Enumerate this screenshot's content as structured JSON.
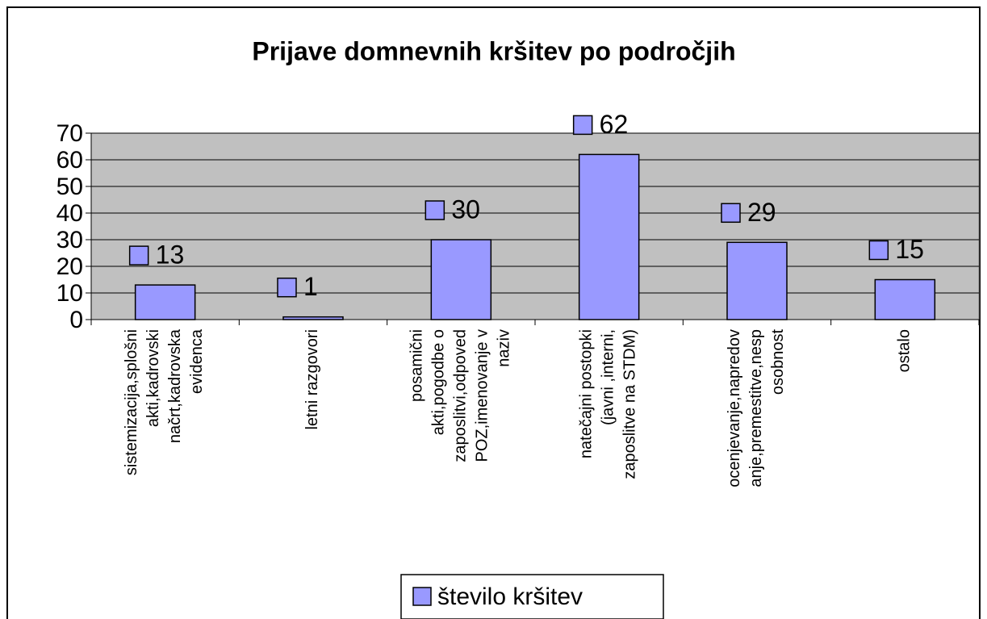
{
  "chart_data": {
    "type": "bar",
    "title": "Prijave domnevnih kršitev po področjih",
    "categories": [
      "sistemizacija,splošni\nakti,kadrovski\nnačrt,kadrovska\nevidenca",
      "letni razgovori",
      "posamični\nakti,pogodbe o\nzaposlitvi,odpoved\nPOZ,imenovanje v\nnaziv",
      "natečajni postopki\n(javni ,interni,\nzaposlitve na STDM)",
      "ocenjevanje,napredov\nanje,premestitve,nesp\nosobnost",
      "ostalo"
    ],
    "series": [
      {
        "name": "število kršitev",
        "color": "#9999ff",
        "values": [
          13,
          1,
          30,
          62,
          29,
          15
        ]
      }
    ],
    "ylim": [
      0,
      70
    ],
    "yticks": [
      0,
      10,
      20,
      30,
      40,
      50,
      60,
      70
    ],
    "grid": true,
    "legend": "bottom",
    "plot_background": "#c0c0c0"
  }
}
